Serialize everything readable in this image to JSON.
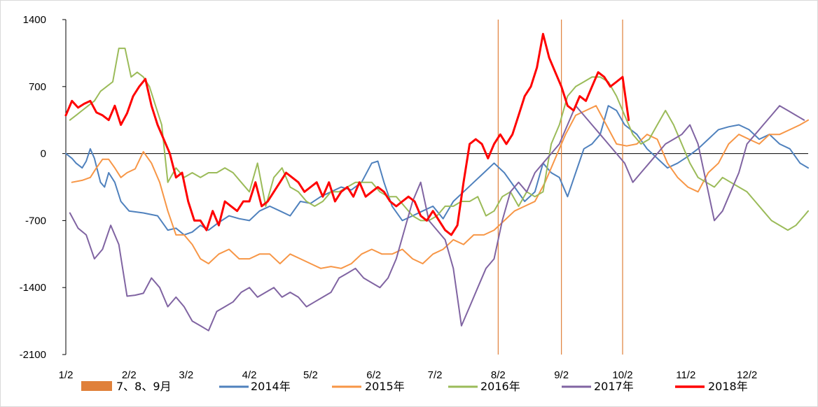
{
  "chart_data": {
    "type": "line",
    "title": "",
    "xlabel": "",
    "ylabel": "",
    "ylim": [
      -2100,
      1400
    ],
    "yticks": [
      1400,
      700,
      0,
      -700,
      -1400,
      -2100
    ],
    "x_tick_labels": [
      "1/2",
      "2/2",
      "3/2",
      "4/2",
      "5/2",
      "6/2",
      "7/2",
      "8/2",
      "9/2",
      "10/2",
      "11/2",
      "12/2"
    ],
    "grid": false,
    "legend_position": "bottom",
    "highlight_band": {
      "label": "7、8、9月",
      "color": "#E0803A",
      "x_markers": [
        "8/1",
        "9/1",
        "10/1"
      ]
    },
    "series": [
      {
        "name": "2014年",
        "color": "#4F81BD",
        "x": [
          0,
          3,
          5,
          8,
          10,
          12,
          14,
          17,
          19,
          21,
          24,
          27,
          31,
          38,
          45,
          50,
          54,
          58,
          62,
          66,
          70,
          75,
          80,
          85,
          90,
          95,
          100,
          105,
          110,
          115,
          120,
          125,
          130,
          135,
          140,
          145,
          150,
          153,
          156,
          160,
          165,
          170,
          175,
          180,
          185,
          190,
          195,
          200,
          205,
          210,
          215,
          220,
          225,
          230,
          234,
          238,
          242,
          246,
          250,
          254,
          258,
          262,
          266,
          270,
          274,
          280,
          285,
          290,
          295,
          300,
          305,
          310,
          315,
          320,
          325,
          330,
          335,
          340,
          345,
          350,
          355,
          360,
          364
        ],
        "values": [
          0,
          -50,
          -100,
          -150,
          -80,
          50,
          -50,
          -300,
          -350,
          -200,
          -300,
          -500,
          -600,
          -620,
          -650,
          -800,
          -780,
          -850,
          -820,
          -750,
          -800,
          -720,
          -650,
          -680,
          -700,
          -600,
          -550,
          -600,
          -650,
          -500,
          -520,
          -450,
          -400,
          -350,
          -380,
          -300,
          -100,
          -80,
          -300,
          -550,
          -700,
          -650,
          -600,
          -550,
          -680,
          -500,
          -400,
          -300,
          -200,
          -100,
          -200,
          -350,
          -500,
          -400,
          -100,
          -200,
          -250,
          -450,
          -200,
          50,
          100,
          200,
          500,
          450,
          300,
          200,
          50,
          -50,
          -150,
          -100,
          -30,
          50,
          150,
          250,
          280,
          300,
          250,
          150,
          200,
          100,
          50,
          -100,
          -150
        ]
      },
      {
        "name": "2015年",
        "color": "#F79646",
        "x": [
          3,
          8,
          12,
          15,
          18,
          21,
          24,
          27,
          30,
          34,
          38,
          42,
          46,
          50,
          54,
          58,
          62,
          66,
          70,
          75,
          80,
          85,
          90,
          95,
          100,
          105,
          110,
          115,
          120,
          125,
          130,
          135,
          140,
          145,
          150,
          155,
          160,
          165,
          170,
          175,
          180,
          185,
          190,
          195,
          200,
          205,
          210,
          215,
          220,
          225,
          230,
          235,
          240,
          245,
          250,
          255,
          260,
          265,
          270,
          275,
          280,
          285,
          290,
          295,
          300,
          305,
          310,
          315,
          320,
          325,
          330,
          335,
          340,
          345,
          350,
          355,
          360,
          364
        ],
        "values": [
          -300,
          -280,
          -250,
          -150,
          -60,
          -60,
          -150,
          -250,
          -200,
          -160,
          20,
          -100,
          -300,
          -600,
          -850,
          -850,
          -950,
          -1100,
          -1150,
          -1050,
          -1000,
          -1100,
          -1100,
          -1050,
          -1050,
          -1150,
          -1050,
          -1100,
          -1150,
          -1200,
          -1180,
          -1200,
          -1150,
          -1050,
          -1000,
          -1050,
          -1050,
          -1000,
          -1100,
          -1150,
          -1050,
          -1000,
          -900,
          -950,
          -850,
          -850,
          -800,
          -700,
          -600,
          -550,
          -500,
          -300,
          -50,
          200,
          400,
          450,
          500,
          300,
          100,
          80,
          100,
          200,
          150,
          -100,
          -250,
          -350,
          -400,
          -200,
          -100,
          100,
          200,
          150,
          100,
          200,
          200,
          250,
          300,
          350
        ]
      },
      {
        "name": "2016年",
        "color": "#9BBB59",
        "x": [
          2,
          5,
          8,
          11,
          14,
          17,
          20,
          23,
          26,
          29,
          32,
          35,
          38,
          41,
          44,
          47,
          50,
          54,
          58,
          62,
          66,
          70,
          74,
          78,
          82,
          86,
          90,
          94,
          98,
          102,
          106,
          110,
          114,
          118,
          122,
          126,
          130,
          134,
          138,
          142,
          146,
          150,
          154,
          158,
          162,
          166,
          170,
          174,
          178,
          182,
          186,
          190,
          194,
          198,
          202,
          206,
          210,
          214,
          218,
          222,
          226,
          230,
          234,
          238,
          242,
          246,
          250,
          254,
          258,
          262,
          266,
          270,
          274,
          278,
          282,
          286,
          290,
          294,
          298,
          302,
          306,
          310,
          314,
          318,
          322,
          326,
          330,
          334,
          338,
          342,
          346,
          350,
          354,
          358,
          362,
          364
        ],
        "values": [
          350,
          400,
          450,
          500,
          550,
          650,
          700,
          750,
          1100,
          1100,
          800,
          850,
          800,
          700,
          500,
          300,
          -300,
          -150,
          -250,
          -200,
          -250,
          -200,
          -200,
          -150,
          -200,
          -300,
          -400,
          -100,
          -550,
          -250,
          -150,
          -350,
          -400,
          -500,
          -550,
          -500,
          -400,
          -400,
          -350,
          -300,
          -300,
          -300,
          -400,
          -450,
          -450,
          -550,
          -650,
          -700,
          -700,
          -650,
          -550,
          -550,
          -500,
          -500,
          -450,
          -650,
          -600,
          -450,
          -400,
          -550,
          -400,
          -450,
          -400,
          100,
          300,
          600,
          700,
          750,
          800,
          800,
          750,
          600,
          400,
          200,
          100,
          150,
          300,
          450,
          300,
          100,
          -100,
          -250,
          -300,
          -350,
          -250,
          -300,
          -350,
          -400,
          -500,
          -600,
          -700,
          -750,
          -800,
          -750,
          -650,
          -600
        ]
      },
      {
        "name": "2017年",
        "color": "#8064A2",
        "x": [
          2,
          6,
          10,
          14,
          18,
          22,
          26,
          30,
          34,
          38,
          42,
          46,
          50,
          54,
          58,
          62,
          66,
          70,
          74,
          78,
          82,
          86,
          90,
          94,
          98,
          102,
          106,
          110,
          114,
          118,
          122,
          126,
          130,
          134,
          138,
          142,
          146,
          150,
          154,
          158,
          162,
          166,
          170,
          174,
          178,
          182,
          186,
          190,
          194,
          198,
          202,
          206,
          210,
          214,
          218,
          222,
          226,
          230,
          234,
          238,
          242,
          246,
          250,
          254,
          258,
          262,
          266,
          270,
          274,
          278,
          282,
          286,
          290,
          294,
          298,
          302,
          306,
          310,
          314,
          318,
          322,
          326,
          330,
          334,
          338,
          342,
          346,
          350,
          354,
          358,
          362
        ],
        "values": [
          -620,
          -780,
          -850,
          -1100,
          -1000,
          -750,
          -950,
          -1490,
          -1480,
          -1460,
          -1300,
          -1400,
          -1600,
          -1500,
          -1600,
          -1750,
          -1800,
          -1850,
          -1650,
          -1600,
          -1550,
          -1450,
          -1400,
          -1500,
          -1450,
          -1400,
          -1500,
          -1450,
          -1500,
          -1600,
          -1550,
          -1500,
          -1450,
          -1300,
          -1250,
          -1200,
          -1300,
          -1350,
          -1400,
          -1300,
          -1100,
          -800,
          -500,
          -300,
          -700,
          -800,
          -900,
          -1200,
          -1800,
          -1600,
          -1400,
          -1200,
          -1100,
          -700,
          -400,
          -300,
          -400,
          -200,
          -100,
          0,
          100,
          300,
          500,
          400,
          300,
          200,
          100,
          0,
          -100,
          -300,
          -200,
          -100,
          0,
          100,
          150,
          200,
          300,
          100,
          -300,
          -700,
          -600,
          -400,
          -200,
          100,
          200,
          300,
          400,
          500,
          450,
          400,
          350
        ]
      },
      {
        "name": "2018年",
        "color": "#FF0000",
        "x": [
          0,
          3,
          6,
          9,
          12,
          15,
          18,
          21,
          24,
          27,
          30,
          33,
          36,
          39,
          42,
          45,
          48,
          51,
          54,
          57,
          60,
          63,
          66,
          69,
          72,
          75,
          78,
          81,
          84,
          87,
          90,
          93,
          96,
          99,
          102,
          105,
          108,
          111,
          114,
          117,
          120,
          123,
          126,
          129,
          132,
          135,
          138,
          141,
          144,
          147,
          150,
          153,
          156,
          159,
          162,
          165,
          168,
          171,
          174,
          177,
          180,
          183,
          186,
          189,
          192,
          195,
          198,
          201,
          204,
          207,
          210,
          213,
          216,
          219,
          222,
          225,
          228,
          231,
          234,
          237,
          240,
          243,
          246,
          249,
          252,
          255,
          258,
          261,
          264,
          267,
          270,
          273,
          276
        ],
        "values": [
          400,
          550,
          480,
          520,
          550,
          430,
          400,
          350,
          500,
          300,
          420,
          600,
          700,
          780,
          500,
          300,
          150,
          0,
          -250,
          -200,
          -500,
          -700,
          -700,
          -800,
          -600,
          -750,
          -500,
          -550,
          -600,
          -500,
          -500,
          -300,
          -550,
          -500,
          -400,
          -300,
          -200,
          -250,
          -300,
          -400,
          -350,
          -300,
          -450,
          -300,
          -500,
          -400,
          -350,
          -450,
          -300,
          -450,
          -400,
          -350,
          -400,
          -500,
          -550,
          -500,
          -450,
          -500,
          -650,
          -700,
          -600,
          -700,
          -800,
          -850,
          -750,
          -300,
          100,
          150,
          100,
          -50,
          100,
          200,
          100,
          200,
          400,
          600,
          700,
          900,
          1250,
          1000,
          850,
          700,
          500,
          450,
          600,
          550,
          700,
          850,
          800,
          700,
          750,
          800,
          350
        ]
      }
    ]
  }
}
